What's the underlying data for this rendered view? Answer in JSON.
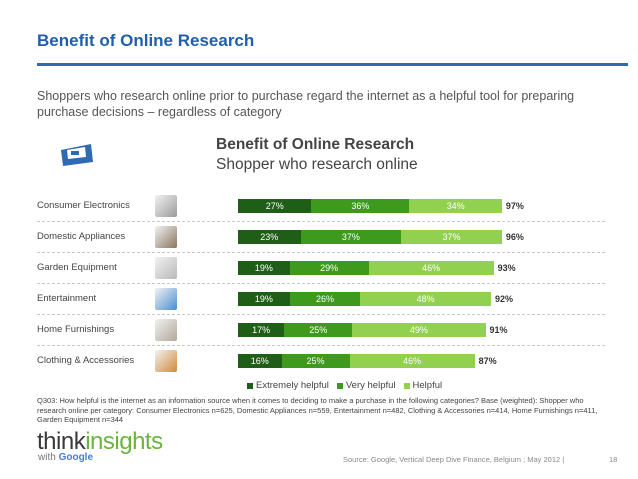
{
  "header": {
    "title": "Benefit of Online Research",
    "subtitle": "Shoppers who research online prior to purchase regard the internet as a helpful tool for preparing purchase decisions – regardless of category"
  },
  "chart_data": {
    "type": "bar",
    "orientation": "horizontal",
    "stacked": true,
    "title": "Benefit of Online Research",
    "subtitle": "Shopper who research online",
    "categories": [
      "Consumer Electronics",
      "Domestic Appliances",
      "Garden Equipment",
      "Entertainment",
      "Home Furnishings",
      "Clothing & Accessories"
    ],
    "series": [
      {
        "name": "Extremely helpful",
        "color": "#1f5e16",
        "values": [
          27,
          23,
          19,
          19,
          17,
          16
        ],
        "labels": [
          "27%",
          "23%",
          "19%",
          "19%",
          "17%",
          "16%"
        ]
      },
      {
        "name": "Very helpful",
        "color": "#3d9a1c",
        "values": [
          36,
          37,
          29,
          26,
          25,
          25
        ],
        "labels": [
          "36%",
          "37%",
          "29%",
          "26%",
          "25%",
          "25%"
        ]
      },
      {
        "name": "Helpful",
        "color": "#92d050",
        "values": [
          34,
          37,
          46,
          48,
          49,
          46
        ],
        "labels": [
          "34%",
          "37%",
          "46%",
          "48%",
          "49%",
          "46%"
        ]
      }
    ],
    "totals": [
      "97%",
      "96%",
      "93%",
      "92%",
      "91%",
      "87%"
    ],
    "xlim": [
      0,
      100
    ],
    "legend": "bottom",
    "grid": false
  },
  "icons": [
    "shopping-cart-sign-icon",
    "electronics-icon",
    "appliance-icon",
    "garden-icon",
    "entertainment-icon",
    "furnishing-icon",
    "clothing-icon"
  ],
  "colors": {
    "title": "#1f5fae",
    "rule": "#2f6bb3"
  },
  "footnote": "Q303: How helpful is the internet as an information source when it comes to deciding to make a purchase in the following categories? Base (weighted): Shopper who research online per category: Consumer Electronics n=625, Domestic Appliances n=559, Entertainment n=482, Clothing & Accessories n=414, Home Furnishings n=411, Garden Equipment n=344",
  "brand": {
    "part1": "think",
    "part2": "insights",
    "with": "with",
    "google": "Google"
  },
  "source": "Source: Google, Vertical Deep Dive Finance, Belgium ; May 2012 |",
  "page_number": "18"
}
